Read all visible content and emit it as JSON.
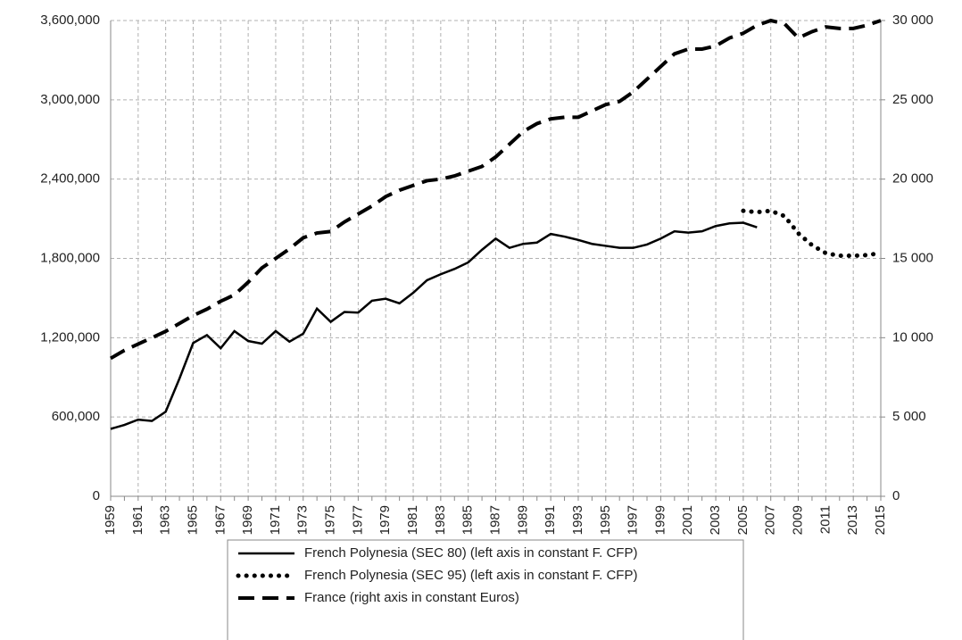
{
  "chart_data": {
    "type": "line",
    "categories": [
      "1959",
      null,
      "1961",
      null,
      "1963",
      null,
      "1965",
      null,
      "1967",
      null,
      "1969",
      null,
      "1971",
      null,
      "1973",
      null,
      "1975",
      null,
      "1977",
      null,
      "1979",
      null,
      "1981",
      null,
      "1983",
      null,
      "1985",
      null,
      "1987",
      null,
      "1989",
      null,
      "1991",
      null,
      "1993",
      null,
      "1995",
      null,
      "1997",
      null,
      "1999",
      null,
      "2001",
      null,
      "2003",
      null,
      "2005",
      null,
      "2007",
      null,
      "2009",
      null,
      "2011",
      null,
      "2013",
      null,
      "2015"
    ],
    "ylim": [
      0,
      3600000
    ],
    "yticks": [
      0,
      {
        "value": 600000,
        "label": "600,000"
      },
      {
        "value": 1200000,
        "label": "1,200,000"
      },
      {
        "value": 1800000,
        "label": "1,800,000"
      },
      {
        "value": 2400000,
        "label": "2,400,000"
      },
      {
        "value": 3000000,
        "label": "3,000,000"
      },
      {
        "value": 3600000,
        "label": "3,600,000"
      }
    ],
    "y2lim": [
      0,
      30000
    ],
    "y2ticks": [
      0,
      {
        "value": 5000,
        "label": "5 000"
      },
      {
        "value": 10000,
        "label": "10 000"
      },
      {
        "value": 15000,
        "label": "15 000"
      },
      {
        "value": 20000,
        "label": "20 000"
      },
      {
        "value": 25000,
        "label": "25 000"
      },
      {
        "value": 30000,
        "label": "30 000"
      }
    ],
    "grid": true,
    "legend": "bottom",
    "series": [
      {
        "name": "French Polynesia (SEC 80) (left axis in constant F. CFP)",
        "color": "#000000",
        "dash": "solid",
        "values": [
          510000,
          540000,
          580000,
          570000,
          640000,
          890000,
          1160000,
          1220000,
          1120000,
          1250000,
          1175000,
          1155000,
          1250000,
          1170000,
          1230000,
          1420000,
          1320000,
          1395000,
          1390000,
          1480000,
          1495000,
          1460000,
          1540000,
          1635000,
          1680000,
          1720000,
          1770000,
          1865000,
          1950000,
          1880000,
          1910000,
          1920000,
          1985000,
          1965000,
          1940000,
          1910000,
          1895000,
          1880000,
          1880000,
          1905000,
          1950000,
          2005000,
          1995000,
          2005000,
          2045000,
          2065000,
          2070000,
          2035000,
          null,
          null,
          null,
          null,
          null,
          null,
          null,
          null,
          null
        ]
      },
      {
        "name": "French Polynesia (SEC 95) (left axis in constant F. CFP)",
        "color": "#000000",
        "dash": "dot",
        "values": [
          null,
          null,
          null,
          null,
          null,
          null,
          null,
          null,
          null,
          null,
          null,
          null,
          null,
          null,
          null,
          null,
          null,
          null,
          null,
          null,
          null,
          null,
          null,
          null,
          null,
          null,
          null,
          null,
          null,
          null,
          null,
          null,
          null,
          null,
          null,
          null,
          null,
          null,
          null,
          null,
          null,
          null,
          null,
          null,
          null,
          null,
          2160000,
          2150000,
          2160000,
          2120000,
          1990000,
          1900000,
          1840000,
          1820000,
          1820000,
          1825000,
          1840000
        ]
      },
      {
        "name": "France (right axis in constant Euros)",
        "color": "#000000",
        "dash": "dash",
        "axis": "y2",
        "values": [
          8700,
          9200,
          9600,
          10000,
          10400,
          10900,
          11400,
          11800,
          12300,
          12700,
          13500,
          14400,
          15000,
          15600,
          16300,
          16600,
          16700,
          17300,
          17800,
          18300,
          18900,
          19300,
          19600,
          19900,
          20000,
          20200,
          20500,
          20800,
          21400,
          22200,
          23000,
          23500,
          23800,
          23900,
          23900,
          24300,
          24700,
          24900,
          25500,
          26300,
          27100,
          27900,
          28200,
          28200,
          28400,
          28900,
          29200,
          29700,
          30000,
          29800,
          28900,
          29300,
          29600,
          29500,
          29500,
          29700,
          30000
        ]
      }
    ]
  }
}
